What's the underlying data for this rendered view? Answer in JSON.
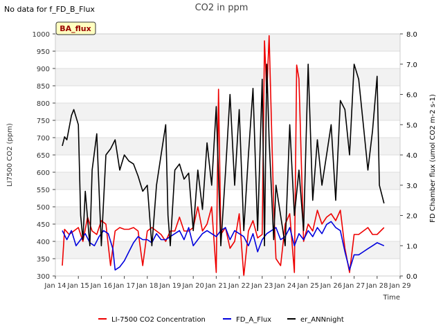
{
  "header": {
    "note": "No data for f_FD_B_Flux"
  },
  "chart_data": {
    "type": "line",
    "title": "CO2 in ppm",
    "xlabel": "Time",
    "ylabel_left": "LI7500 CO2 (ppm)",
    "ylabel_right": "FD Chamber flux (umol CO2 m-2 s-1)",
    "annotation": "BA_flux",
    "x_ticks": [
      "Jan 14",
      "Jan 15",
      "Jan 16",
      "Jan 17",
      "Jan 18",
      "Jan 19",
      "Jan 20",
      "Jan 21",
      "Jan 22",
      "Jan 23",
      "Jan 24",
      "Jan 25",
      "Jan 26",
      "Jan 27",
      "Jan 28",
      "Jan 29"
    ],
    "xlim": [
      14,
      29
    ],
    "ylim_left": [
      300,
      1000
    ],
    "y_ticks_left": [
      300,
      350,
      400,
      450,
      500,
      550,
      600,
      650,
      700,
      750,
      800,
      850,
      900,
      950,
      1000
    ],
    "ylim_right": [
      0,
      8
    ],
    "y_ticks_right": [
      "0.0",
      "1.0",
      "2.0",
      "3.0",
      "4.0",
      "5.0",
      "6.0",
      "7.0",
      "8.0"
    ],
    "grid": true,
    "legend_position": "bottom",
    "series": [
      {
        "name": "LI-7500 CO2 Concentration",
        "color": "#ee0000",
        "axis": "left",
        "x": [
          14.3,
          14.4,
          14.6,
          14.8,
          15.0,
          15.2,
          15.4,
          15.6,
          15.8,
          16.0,
          16.2,
          16.4,
          16.6,
          16.8,
          17.0,
          17.2,
          17.4,
          17.6,
          17.8,
          18.0,
          18.2,
          18.4,
          18.6,
          18.8,
          19.0,
          19.2,
          19.4,
          19.6,
          19.8,
          20.0,
          20.2,
          20.4,
          20.6,
          20.8,
          21.0,
          21.1,
          21.2,
          21.4,
          21.6,
          21.8,
          22.0,
          22.2,
          22.4,
          22.6,
          22.8,
          23.0,
          23.1,
          23.2,
          23.3,
          23.5,
          23.6,
          23.8,
          24.0,
          24.2,
          24.4,
          24.5,
          24.6,
          24.8,
          25.0,
          25.2,
          25.4,
          25.6,
          25.8,
          26.0,
          26.2,
          26.4,
          26.6,
          26.8,
          27.0,
          27.2,
          27.4,
          27.6,
          27.8,
          28.0,
          28.3
        ],
        "values": [
          330,
          435,
          420,
          430,
          440,
          400,
          470,
          430,
          420,
          460,
          450,
          330,
          430,
          440,
          435,
          435,
          440,
          430,
          330,
          430,
          440,
          430,
          420,
          400,
          430,
          430,
          470,
          430,
          430,
          440,
          500,
          430,
          450,
          500,
          310,
          840,
          420,
          440,
          380,
          400,
          480,
          300,
          430,
          460,
          410,
          420,
          980,
          830,
          995,
          500,
          350,
          330,
          450,
          480,
          310,
          910,
          870,
          400,
          450,
          430,
          490,
          450,
          470,
          480,
          460,
          490,
          380,
          310,
          420,
          420,
          430,
          440,
          420,
          420,
          440
        ]
      },
      {
        "name": "FD_A_Flux",
        "color": "#0000dd",
        "axis": "right",
        "x": [
          14.3,
          14.5,
          14.7,
          14.9,
          15.1,
          15.3,
          15.5,
          15.7,
          15.9,
          16.1,
          16.3,
          16.5,
          16.6,
          16.8,
          17.0,
          17.2,
          17.4,
          17.6,
          17.8,
          18.0,
          18.2,
          18.4,
          18.6,
          18.8,
          19.0,
          19.2,
          19.4,
          19.6,
          19.8,
          20.0,
          20.2,
          20.4,
          20.6,
          20.8,
          21.0,
          21.2,
          21.4,
          21.6,
          21.8,
          22.0,
          22.2,
          22.4,
          22.6,
          22.8,
          23.0,
          23.2,
          23.4,
          23.6,
          23.8,
          24.0,
          24.2,
          24.4,
          24.6,
          24.8,
          25.0,
          25.2,
          25.4,
          25.6,
          25.8,
          26.0,
          26.2,
          26.4,
          26.6,
          26.8,
          27.0,
          27.2,
          27.4,
          27.6,
          27.8,
          28.0,
          28.3
        ],
        "values": [
          1.5,
          1.2,
          1.5,
          1.0,
          1.2,
          1.4,
          1.1,
          1.0,
          1.3,
          1.5,
          1.4,
          0.9,
          0.2,
          0.3,
          0.5,
          0.8,
          1.1,
          1.3,
          1.2,
          1.2,
          1.1,
          1.4,
          1.2,
          1.2,
          1.3,
          1.4,
          1.5,
          1.2,
          1.6,
          1.0,
          1.2,
          1.4,
          1.5,
          1.4,
          1.3,
          1.5,
          1.6,
          1.2,
          1.5,
          1.4,
          1.3,
          1.0,
          1.4,
          0.8,
          1.2,
          1.4,
          1.5,
          1.6,
          1.2,
          1.3,
          1.6,
          1.0,
          1.4,
          1.2,
          1.5,
          1.3,
          1.6,
          1.4,
          1.7,
          1.8,
          1.6,
          1.5,
          0.8,
          0.2,
          0.7,
          0.7,
          0.8,
          0.9,
          1.0,
          1.1,
          1.0
        ]
      },
      {
        "name": "er_ANNnight",
        "color": "#000000",
        "axis": "right",
        "x": [
          14.3,
          14.4,
          14.5,
          14.7,
          14.8,
          15.0,
          15.1,
          15.2,
          15.3,
          15.5,
          15.6,
          15.8,
          16.0,
          16.2,
          16.4,
          16.6,
          16.8,
          17.0,
          17.2,
          17.4,
          17.6,
          17.8,
          18.0,
          18.2,
          18.4,
          18.6,
          18.8,
          18.9,
          19.0,
          19.2,
          19.4,
          19.6,
          19.8,
          20.0,
          20.2,
          20.4,
          20.6,
          20.8,
          21.0,
          21.2,
          21.4,
          21.6,
          21.8,
          22.0,
          22.2,
          22.4,
          22.6,
          22.8,
          23.0,
          23.1,
          23.2,
          23.3,
          23.5,
          23.6,
          23.8,
          24.0,
          24.2,
          24.4,
          24.6,
          24.8,
          25.0,
          25.2,
          25.4,
          25.6,
          25.8,
          26.0,
          26.2,
          26.4,
          26.6,
          26.8,
          27.0,
          27.2,
          27.4,
          27.6,
          27.8,
          28.0,
          28.1,
          28.3
        ],
        "values": [
          4.3,
          4.6,
          4.5,
          5.3,
          5.5,
          5.0,
          2.0,
          1.2,
          2.8,
          1.0,
          3.5,
          4.7,
          1.0,
          4.0,
          4.2,
          4.5,
          3.5,
          4.0,
          3.8,
          3.7,
          3.3,
          2.8,
          3.0,
          1.0,
          3.0,
          4.0,
          5.0,
          2.0,
          1.0,
          3.5,
          3.7,
          3.2,
          3.4,
          1.5,
          3.5,
          2.2,
          4.4,
          3.0,
          5.6,
          1.0,
          3.4,
          6.0,
          3.0,
          5.5,
          1.5,
          4.0,
          6.2,
          1.5,
          6.5,
          1.0,
          7.0,
          4.5,
          1.2,
          3.0,
          2.0,
          1.0,
          5.0,
          2.0,
          3.5,
          1.5,
          7.0,
          2.5,
          4.5,
          3.0,
          4.0,
          5.0,
          2.5,
          5.8,
          5.5,
          4.0,
          7.0,
          6.5,
          5.0,
          3.5,
          4.8,
          6.6,
          3.0,
          2.4
        ]
      }
    ]
  }
}
